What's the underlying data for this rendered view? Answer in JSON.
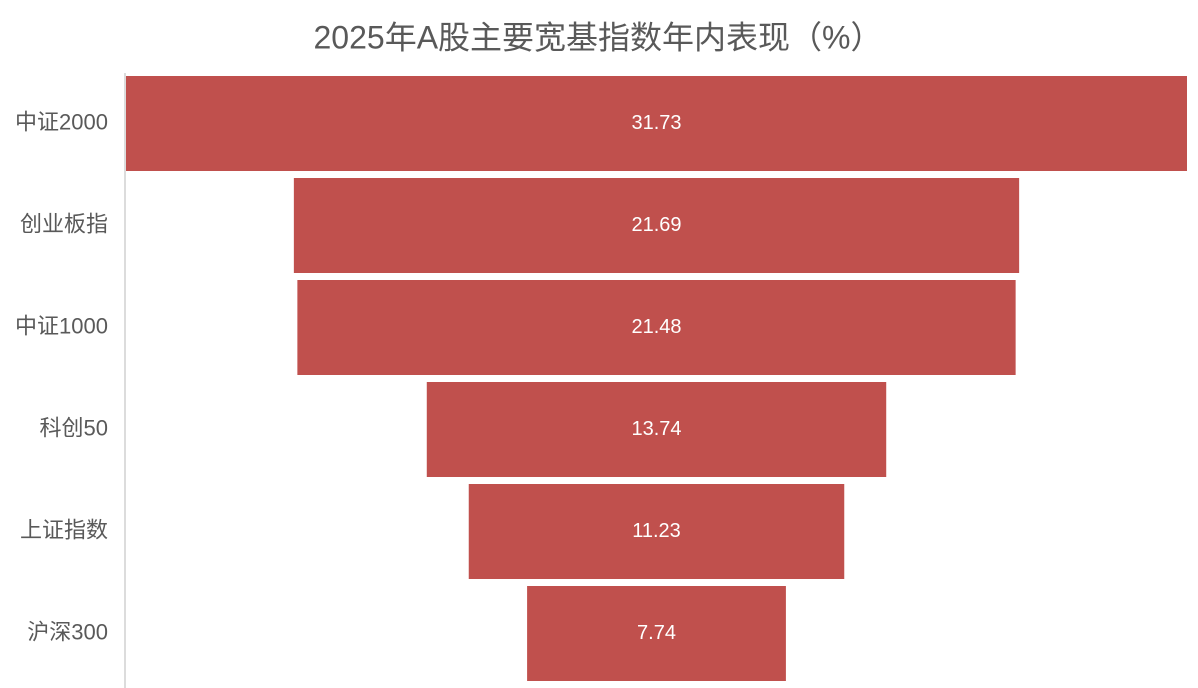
{
  "chart_data": {
    "type": "funnel",
    "title": "2025年A股主要宽基指数年内表现（%）",
    "categories": [
      "中证2000",
      "创业板指",
      "中证1000",
      "科创50",
      "上证指数",
      "沪深300"
    ],
    "values": [
      31.73,
      21.69,
      21.48,
      13.74,
      11.23,
      7.74
    ],
    "color": "#c0504d"
  }
}
